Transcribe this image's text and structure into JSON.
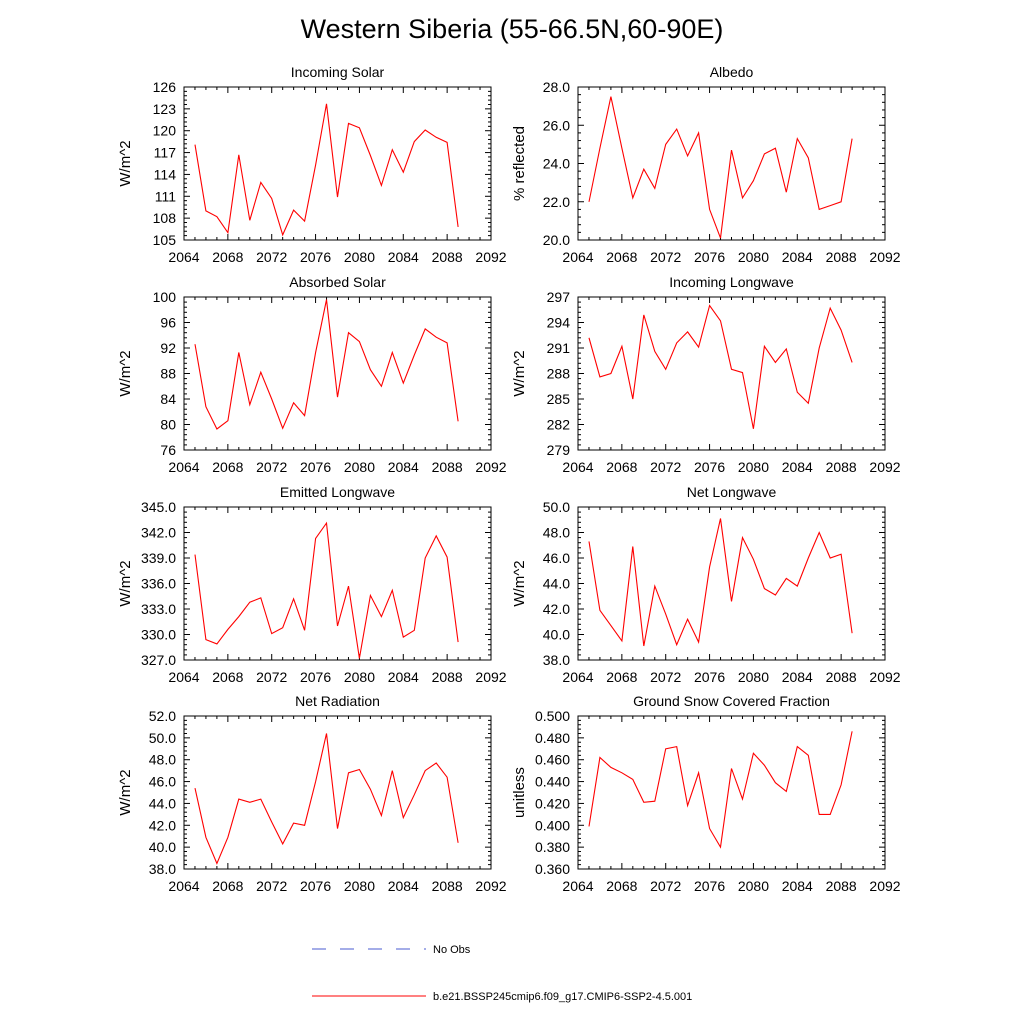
{
  "title": "Western Siberia (55-66.5N,60-90E)",
  "colors": {
    "model": "#ff0000",
    "obs": "#4a5bd0",
    "axis": "#000000"
  },
  "legend": {
    "obs_label": "No Obs",
    "model_label": "b.e21.BSSP245cmip6.f09_g17.CMIP6-SSP2-4.5.001"
  },
  "chart_data": [
    {
      "type": "line",
      "title": "Incoming Solar",
      "ylabel": "W/m^2",
      "xlim": [
        2064,
        2092
      ],
      "ylim": [
        105,
        126
      ],
      "xticks": [
        2064,
        2068,
        2072,
        2076,
        2080,
        2084,
        2088,
        2092
      ],
      "yticks": [
        "105",
        "108",
        "111",
        "114",
        "117",
        "120",
        "123",
        "126"
      ],
      "ytick_values": [
        105,
        108,
        111,
        114,
        117,
        120,
        123,
        126
      ],
      "x": [
        2065,
        2066,
        2067,
        2068,
        2069,
        2070,
        2071,
        2072,
        2073,
        2074,
        2075,
        2076,
        2077,
        2078,
        2079,
        2080,
        2081,
        2082,
        2083,
        2084,
        2085,
        2086,
        2087,
        2088,
        2089
      ],
      "values": [
        118.1,
        109.0,
        108.2,
        106.0,
        116.7,
        107.7,
        112.9,
        110.7,
        105.7,
        109.1,
        107.6,
        115.3,
        123.7,
        110.9,
        121.0,
        120.4,
        116.6,
        112.5,
        117.4,
        114.3,
        118.5,
        120.1,
        119.1,
        118.4,
        106.8
      ]
    },
    {
      "type": "line",
      "title": "Albedo",
      "ylabel": "% reflected",
      "xlim": [
        2064,
        2092
      ],
      "ylim": [
        20,
        28
      ],
      "xticks": [
        2064,
        2068,
        2072,
        2076,
        2080,
        2084,
        2088,
        2092
      ],
      "yticks": [
        "20.0",
        "22.0",
        "24.0",
        "26.0",
        "28.0"
      ],
      "ytick_values": [
        20,
        22,
        24,
        26,
        28
      ],
      "x": [
        2065,
        2066,
        2067,
        2068,
        2069,
        2070,
        2071,
        2072,
        2073,
        2074,
        2075,
        2076,
        2077,
        2078,
        2079,
        2080,
        2081,
        2082,
        2083,
        2084,
        2085,
        2086,
        2087,
        2088,
        2089
      ],
      "values": [
        22.0,
        24.8,
        27.5,
        24.8,
        22.2,
        23.7,
        22.7,
        25.0,
        25.8,
        24.4,
        25.6,
        21.6,
        20.1,
        24.7,
        22.2,
        23.1,
        24.5,
        24.8,
        22.5,
        25.3,
        24.3,
        21.6,
        21.8,
        22.0,
        25.3
      ]
    },
    {
      "type": "line",
      "title": "Absorbed Solar",
      "ylabel": "W/m^2",
      "xlim": [
        2064,
        2092
      ],
      "ylim": [
        76,
        100
      ],
      "xticks": [
        2064,
        2068,
        2072,
        2076,
        2080,
        2084,
        2088,
        2092
      ],
      "yticks": [
        "76",
        "80",
        "84",
        "88",
        "92",
        "96",
        "100"
      ],
      "ytick_values": [
        76,
        80,
        84,
        88,
        92,
        96,
        100
      ],
      "x": [
        2065,
        2066,
        2067,
        2068,
        2069,
        2070,
        2071,
        2072,
        2073,
        2074,
        2075,
        2076,
        2077,
        2078,
        2079,
        2080,
        2081,
        2082,
        2083,
        2084,
        2085,
        2086,
        2087,
        2088,
        2089
      ],
      "values": [
        92.6,
        82.8,
        79.3,
        80.6,
        91.3,
        83.1,
        88.2,
        84.0,
        79.4,
        83.4,
        81.4,
        91.3,
        99.6,
        84.3,
        94.4,
        93.0,
        88.6,
        86.0,
        91.3,
        86.5,
        90.9,
        95.0,
        93.7,
        92.8,
        80.5
      ]
    },
    {
      "type": "line",
      "title": "Incoming Longwave",
      "ylabel": "W/m^2",
      "xlim": [
        2064,
        2092
      ],
      "ylim": [
        279,
        297
      ],
      "xticks": [
        2064,
        2068,
        2072,
        2076,
        2080,
        2084,
        2088,
        2092
      ],
      "yticks": [
        "279",
        "282",
        "285",
        "288",
        "291",
        "294",
        "297"
      ],
      "ytick_values": [
        279,
        282,
        285,
        288,
        291,
        294,
        297
      ],
      "x": [
        2065,
        2066,
        2067,
        2068,
        2069,
        2070,
        2071,
        2072,
        2073,
        2074,
        2075,
        2076,
        2077,
        2078,
        2079,
        2080,
        2081,
        2082,
        2083,
        2084,
        2085,
        2086,
        2087,
        2088,
        2089
      ],
      "values": [
        292.2,
        287.6,
        288.0,
        291.2,
        285.0,
        294.9,
        290.6,
        288.5,
        291.6,
        292.9,
        291.1,
        296.0,
        294.2,
        288.5,
        288.1,
        281.5,
        291.2,
        289.3,
        290.9,
        285.8,
        284.5,
        291.0,
        295.7,
        293.1,
        289.3
      ]
    },
    {
      "type": "line",
      "title": "Emitted Longwave",
      "ylabel": "W/m^2",
      "xlim": [
        2064,
        2092
      ],
      "ylim": [
        327,
        345
      ],
      "xticks": [
        2064,
        2068,
        2072,
        2076,
        2080,
        2084,
        2088,
        2092
      ],
      "yticks": [
        "327.0",
        "330.0",
        "333.0",
        "336.0",
        "339.0",
        "342.0",
        "345.0"
      ],
      "ytick_values": [
        327,
        330,
        333,
        336,
        339,
        342,
        345
      ],
      "x": [
        2065,
        2066,
        2067,
        2068,
        2069,
        2070,
        2071,
        2072,
        2073,
        2074,
        2075,
        2076,
        2077,
        2078,
        2079,
        2080,
        2081,
        2082,
        2083,
        2084,
        2085,
        2086,
        2087,
        2088,
        2089
      ],
      "values": [
        339.4,
        329.4,
        328.9,
        330.6,
        332.1,
        333.8,
        334.3,
        330.1,
        330.8,
        334.2,
        330.5,
        341.3,
        343.1,
        331.0,
        335.7,
        327.2,
        334.6,
        332.1,
        335.2,
        329.7,
        330.5,
        339.0,
        341.6,
        339.1,
        329.1
      ]
    },
    {
      "type": "line",
      "title": "Net Longwave",
      "ylabel": "W/m^2",
      "xlim": [
        2064,
        2092
      ],
      "ylim": [
        38,
        50
      ],
      "xticks": [
        2064,
        2068,
        2072,
        2076,
        2080,
        2084,
        2088,
        2092
      ],
      "yticks": [
        "38.0",
        "40.0",
        "42.0",
        "44.0",
        "46.0",
        "48.0",
        "50.0"
      ],
      "ytick_values": [
        38,
        40,
        42,
        44,
        46,
        48,
        50
      ],
      "x": [
        2065,
        2066,
        2067,
        2068,
        2069,
        2070,
        2071,
        2072,
        2073,
        2074,
        2075,
        2076,
        2077,
        2078,
        2079,
        2080,
        2081,
        2082,
        2083,
        2084,
        2085,
        2086,
        2087,
        2088,
        2089
      ],
      "values": [
        47.3,
        41.9,
        40.7,
        39.5,
        46.9,
        39.1,
        43.8,
        41.6,
        39.2,
        41.2,
        39.4,
        45.3,
        49.1,
        42.6,
        47.6,
        45.9,
        43.6,
        43.1,
        44.4,
        43.8,
        46.0,
        48.0,
        46.0,
        46.3,
        40.1
      ]
    },
    {
      "type": "line",
      "title": "Net Radiation",
      "ylabel": "W/m^2",
      "xlim": [
        2064,
        2092
      ],
      "ylim": [
        38,
        52
      ],
      "xticks": [
        2064,
        2068,
        2072,
        2076,
        2080,
        2084,
        2088,
        2092
      ],
      "yticks": [
        "38.0",
        "40.0",
        "42.0",
        "44.0",
        "46.0",
        "48.0",
        "50.0",
        "52.0"
      ],
      "ytick_values": [
        38,
        40,
        42,
        44,
        46,
        48,
        50,
        52
      ],
      "x": [
        2065,
        2066,
        2067,
        2068,
        2069,
        2070,
        2071,
        2072,
        2073,
        2074,
        2075,
        2076,
        2077,
        2078,
        2079,
        2080,
        2081,
        2082,
        2083,
        2084,
        2085,
        2086,
        2087,
        2088,
        2089
      ],
      "values": [
        45.4,
        40.9,
        38.5,
        40.9,
        44.4,
        44.1,
        44.4,
        42.3,
        40.3,
        42.2,
        42.0,
        46.0,
        50.4,
        41.7,
        46.8,
        47.1,
        45.3,
        42.9,
        47.0,
        42.7,
        44.8,
        47.0,
        47.7,
        46.4,
        40.4
      ]
    },
    {
      "type": "line",
      "title": "Ground Snow Covered Fraction",
      "ylabel": "unitless",
      "xlim": [
        2064,
        2092
      ],
      "ylim": [
        0.36,
        0.5
      ],
      "xticks": [
        2064,
        2068,
        2072,
        2076,
        2080,
        2084,
        2088,
        2092
      ],
      "yticks": [
        "0.360",
        "0.380",
        "0.400",
        "0.420",
        "0.440",
        "0.460",
        "0.480",
        "0.500"
      ],
      "ytick_values": [
        0.36,
        0.38,
        0.4,
        0.42,
        0.44,
        0.46,
        0.48,
        0.5
      ],
      "x": [
        2065,
        2066,
        2067,
        2068,
        2069,
        2070,
        2071,
        2072,
        2073,
        2074,
        2075,
        2076,
        2077,
        2078,
        2079,
        2080,
        2081,
        2082,
        2083,
        2084,
        2085,
        2086,
        2087,
        2088,
        2089
      ],
      "values": [
        0.399,
        0.462,
        0.453,
        0.448,
        0.442,
        0.421,
        0.422,
        0.47,
        0.472,
        0.418,
        0.448,
        0.397,
        0.38,
        0.452,
        0.424,
        0.466,
        0.455,
        0.439,
        0.431,
        0.472,
        0.464,
        0.41,
        0.41,
        0.437,
        0.486
      ]
    }
  ]
}
